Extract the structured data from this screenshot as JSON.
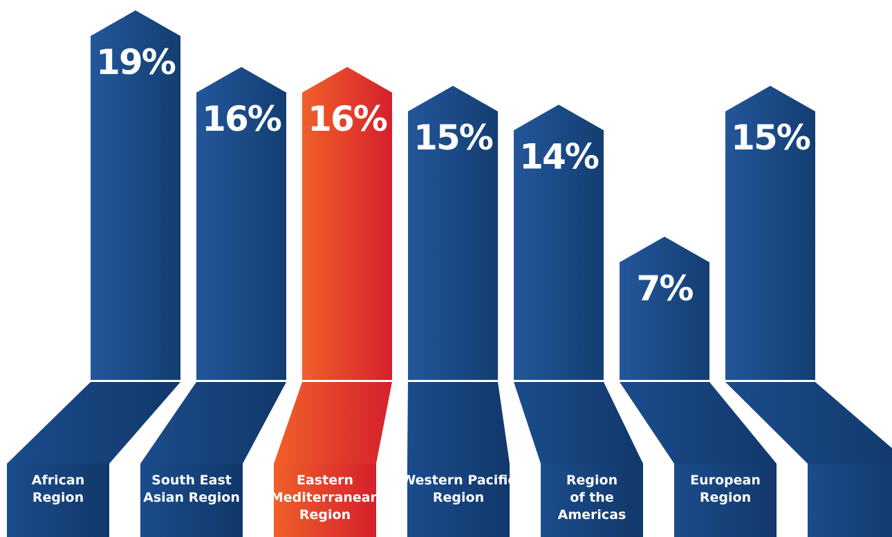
{
  "chart_data": {
    "type": "bar",
    "title": "",
    "xlabel": "",
    "ylabel": "",
    "categories": [
      [
        "African",
        "Region"
      ],
      [
        "South East",
        "Asian Region"
      ],
      [
        "Eastern",
        "Mediterranean",
        "Region"
      ],
      [
        "Western Pacific",
        "Region"
      ],
      [
        "Region",
        "of the",
        "Americas"
      ],
      [
        "European",
        "Region"
      ],
      []
    ],
    "values": [
      19,
      16,
      16,
      15,
      14,
      7,
      15
    ],
    "value_labels": [
      "19%",
      "16%",
      "16%",
      "15%",
      "14%",
      "7%",
      "15%"
    ],
    "highlight_index": 2,
    "colors": {
      "bar": "#1f4f8e",
      "bar_dark": "#123c6e",
      "highlight_start": "#f0602a",
      "highlight_end": "#d6202c",
      "background": "#ffffff"
    }
  }
}
